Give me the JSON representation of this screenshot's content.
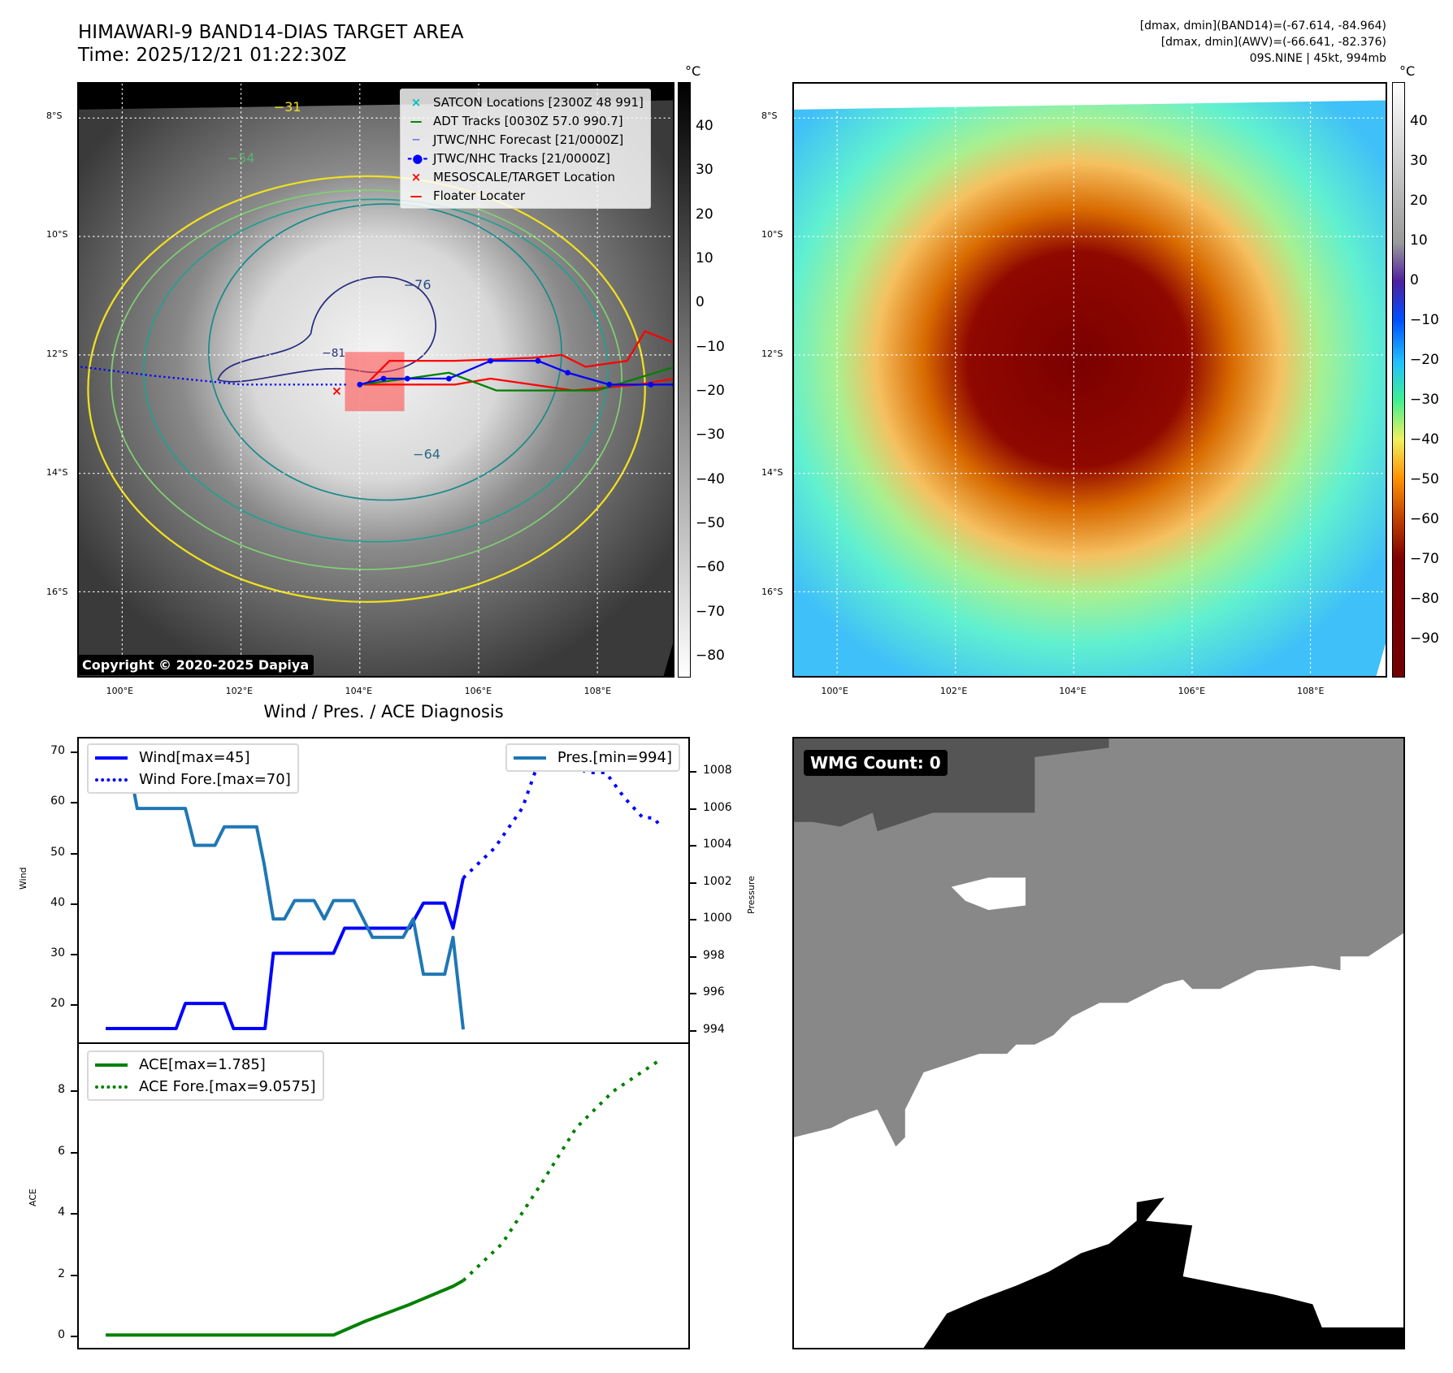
{
  "header": {
    "title_line1": "HIMAWARI-9 BAND14-DIAS TARGET AREA",
    "title_line2": "Time: 2025/12/21 01:22:30Z",
    "stats_line1": "[dmax, dmin](BAND14)=(-67.614, -84.964)",
    "stats_line2": "[dmax, dmin](AWV)=(-66.641, -82.376)",
    "stats_line3": "09S.NINE | 45kt, 994mb"
  },
  "map": {
    "lon_ticks": [
      {
        "v": 100,
        "label": "100°E"
      },
      {
        "v": 102,
        "label": "102°E"
      },
      {
        "v": 104,
        "label": "104°E"
      },
      {
        "v": 106,
        "label": "106°E"
      },
      {
        "v": 108,
        "label": "108°E"
      }
    ],
    "lat_ticks": [
      {
        "v": 8,
        "label": "8°S"
      },
      {
        "v": 10,
        "label": "10°S"
      },
      {
        "v": 12,
        "label": "12°S"
      },
      {
        "v": 14,
        "label": "14°S"
      },
      {
        "v": 16,
        "label": "16°S"
      }
    ],
    "copyright": "Copyright © 2020-2025 Dapiya",
    "legend": [
      {
        "label": "SATCON Locations [2300Z 48 991]",
        "color": "#00c0c0",
        "symbol": "×"
      },
      {
        "label": "ADT Tracks [0030Z 57.0 990.7]",
        "color": "#008000",
        "symbol": "—"
      },
      {
        "label": "JTWC/NHC Forecast [21/0000Z]",
        "color": "#0000ff",
        "symbol": "┈"
      },
      {
        "label": "JTWC/NHC Tracks [21/0000Z]",
        "color": "#0000ff",
        "symbol": "-●-"
      },
      {
        "label": "MESOSCALE/TARGET Location",
        "color": "#ff0000",
        "symbol": "×"
      },
      {
        "label": "Floater Locater",
        "color": "#ff0000",
        "symbol": "—"
      }
    ],
    "contour_labels": [
      "−76",
      "−64",
      "−31",
      "−54",
      "−81"
    ],
    "forecast_track": [
      [
        99.3,
        12.2
      ],
      [
        100.5,
        12.35
      ],
      [
        102,
        12.5
      ],
      [
        103.8,
        12.5
      ]
    ],
    "jtwc_track": [
      [
        109.3,
        12.5
      ],
      [
        108.9,
        12.5
      ],
      [
        108.2,
        12.5
      ],
      [
        107.5,
        12.3
      ],
      [
        107,
        12.1
      ],
      [
        106.2,
        12.1
      ],
      [
        105.5,
        12.4
      ],
      [
        104.8,
        12.4
      ],
      [
        104.4,
        12.4
      ],
      [
        104,
        12.5
      ]
    ],
    "adt_track": [
      [
        109.3,
        12.2
      ],
      [
        108,
        12.6
      ],
      [
        106.3,
        12.6
      ],
      [
        105.5,
        12.3
      ],
      [
        104.8,
        12.4
      ],
      [
        104,
        12.5
      ]
    ],
    "floater_track": [
      [
        109.3,
        11.8
      ],
      [
        108.8,
        11.6
      ],
      [
        108.5,
        12.1
      ],
      [
        107.8,
        12.2
      ],
      [
        107.4,
        12.0
      ],
      [
        106.9,
        12.05
      ],
      [
        105.6,
        12.1
      ],
      [
        104.5,
        12.1
      ],
      [
        104.1,
        12.5
      ],
      [
        105.6,
        12.5
      ],
      [
        106.2,
        12.4
      ],
      [
        107.6,
        12.6
      ],
      [
        108.7,
        12.5
      ],
      [
        109.3,
        12.4
      ]
    ],
    "target_box": {
      "lon": [
        103.75,
        104.75
      ],
      "lat": [
        11.95,
        12.95
      ]
    },
    "target_marker": [
      103.6,
      12.6
    ]
  },
  "colorbar_left": {
    "unit": "°C",
    "ticks": [
      40,
      30,
      20,
      10,
      0,
      -10,
      -20,
      -30,
      -40,
      -50,
      -60,
      -70,
      -80
    ],
    "range": [
      50.1,
      -84.8
    ]
  },
  "colorbar_right": {
    "unit": "°C",
    "ticks": [
      40,
      30,
      20,
      10,
      0,
      -10,
      -20,
      -30,
      -40,
      -50,
      -60,
      -70,
      -80,
      -90
    ],
    "range": [
      50,
      -99.7
    ]
  },
  "chart_data": [
    {
      "type": "line",
      "title": "Wind / Pres. / ACE Diagnosis",
      "ylabel": "Wind",
      "ylabel_right": "Pressure",
      "xlim": [
        -2.9,
        62.9
      ],
      "ylim": [
        12.25,
        72.8
      ],
      "ylim_right": [
        993.3,
        1009.8
      ],
      "yticks": [
        20,
        30,
        40,
        50,
        60,
        70
      ],
      "yticks_right": [
        994,
        996,
        998,
        1000,
        1002,
        1004,
        1006,
        1008
      ],
      "series": [
        {
          "name": "Wind[max=45]",
          "color": "#0000ff",
          "style": "solid",
          "axis": "left",
          "points": [
            [
              0,
              15
            ],
            [
              7.6,
              15
            ],
            [
              8.6,
              20
            ],
            [
              12.8,
              20
            ],
            [
              13.8,
              15
            ],
            [
              17.2,
              15
            ],
            [
              18.1,
              30
            ],
            [
              24.6,
              30
            ],
            [
              25.8,
              35
            ],
            [
              32.8,
              35
            ],
            [
              34.3,
              40
            ],
            [
              36.6,
              40
            ],
            [
              37.5,
              35
            ],
            [
              38.6,
              45
            ]
          ]
        },
        {
          "name": "Wind Fore.[max=70]",
          "color": "#0000ff",
          "style": "dotted",
          "axis": "left",
          "points": [
            [
              38.6,
              45
            ],
            [
              42,
              51
            ],
            [
              45,
              59
            ],
            [
              47.1,
              70
            ],
            [
              50,
              68
            ],
            [
              52,
              66
            ],
            [
              54,
              66
            ],
            [
              56,
              61
            ],
            [
              58,
              57
            ],
            [
              59.2,
              57
            ],
            [
              60,
              55
            ]
          ]
        },
        {
          "name": "Pres.[min=994]",
          "color": "#1f77b4",
          "style": "solid",
          "axis": "right",
          "points": [
            [
              0,
              1009
            ],
            [
              2.3,
              1009
            ],
            [
              3.4,
              1006
            ],
            [
              8.6,
              1006
            ],
            [
              9.6,
              1004
            ],
            [
              11.8,
              1004
            ],
            [
              12.8,
              1005
            ],
            [
              16.3,
              1005
            ],
            [
              17.1,
              1003
            ],
            [
              18.1,
              1000
            ],
            [
              19.3,
              1000
            ],
            [
              20.4,
              1001
            ],
            [
              22.5,
              1001
            ],
            [
              23.6,
              1000
            ],
            [
              24.6,
              1001
            ],
            [
              26.8,
              1001
            ],
            [
              28.8,
              999
            ],
            [
              32.1,
              999
            ],
            [
              33.2,
              1000
            ],
            [
              34.3,
              997
            ],
            [
              36.6,
              997
            ],
            [
              37.5,
              999
            ],
            [
              38.6,
              994
            ]
          ]
        }
      ]
    },
    {
      "type": "line",
      "ylabel": "ACE",
      "xlim": [
        -2.9,
        62.9
      ],
      "ylim": [
        -0.42,
        9.55
      ],
      "yticks": [
        0,
        2,
        4,
        6,
        8
      ],
      "series": [
        {
          "name": "ACE[max=1.785]",
          "color": "#008000",
          "style": "solid",
          "points": [
            [
              0,
              0
            ],
            [
              24.6,
              0
            ],
            [
              28,
              0.45
            ],
            [
              32.8,
              1.0
            ],
            [
              37.5,
              1.6
            ],
            [
              38.6,
              1.785
            ]
          ]
        },
        {
          "name": "ACE Fore.[max=9.0575]",
          "color": "#008000",
          "style": "dotted",
          "points": [
            [
              38.6,
              1.785
            ],
            [
              42.8,
              3.0
            ],
            [
              47.1,
              5.0
            ],
            [
              50.8,
              6.8
            ],
            [
              54.8,
              8.0
            ],
            [
              60,
              9.0575
            ]
          ]
        }
      ]
    }
  ],
  "wmg": {
    "label": "WMG Count: 0"
  }
}
